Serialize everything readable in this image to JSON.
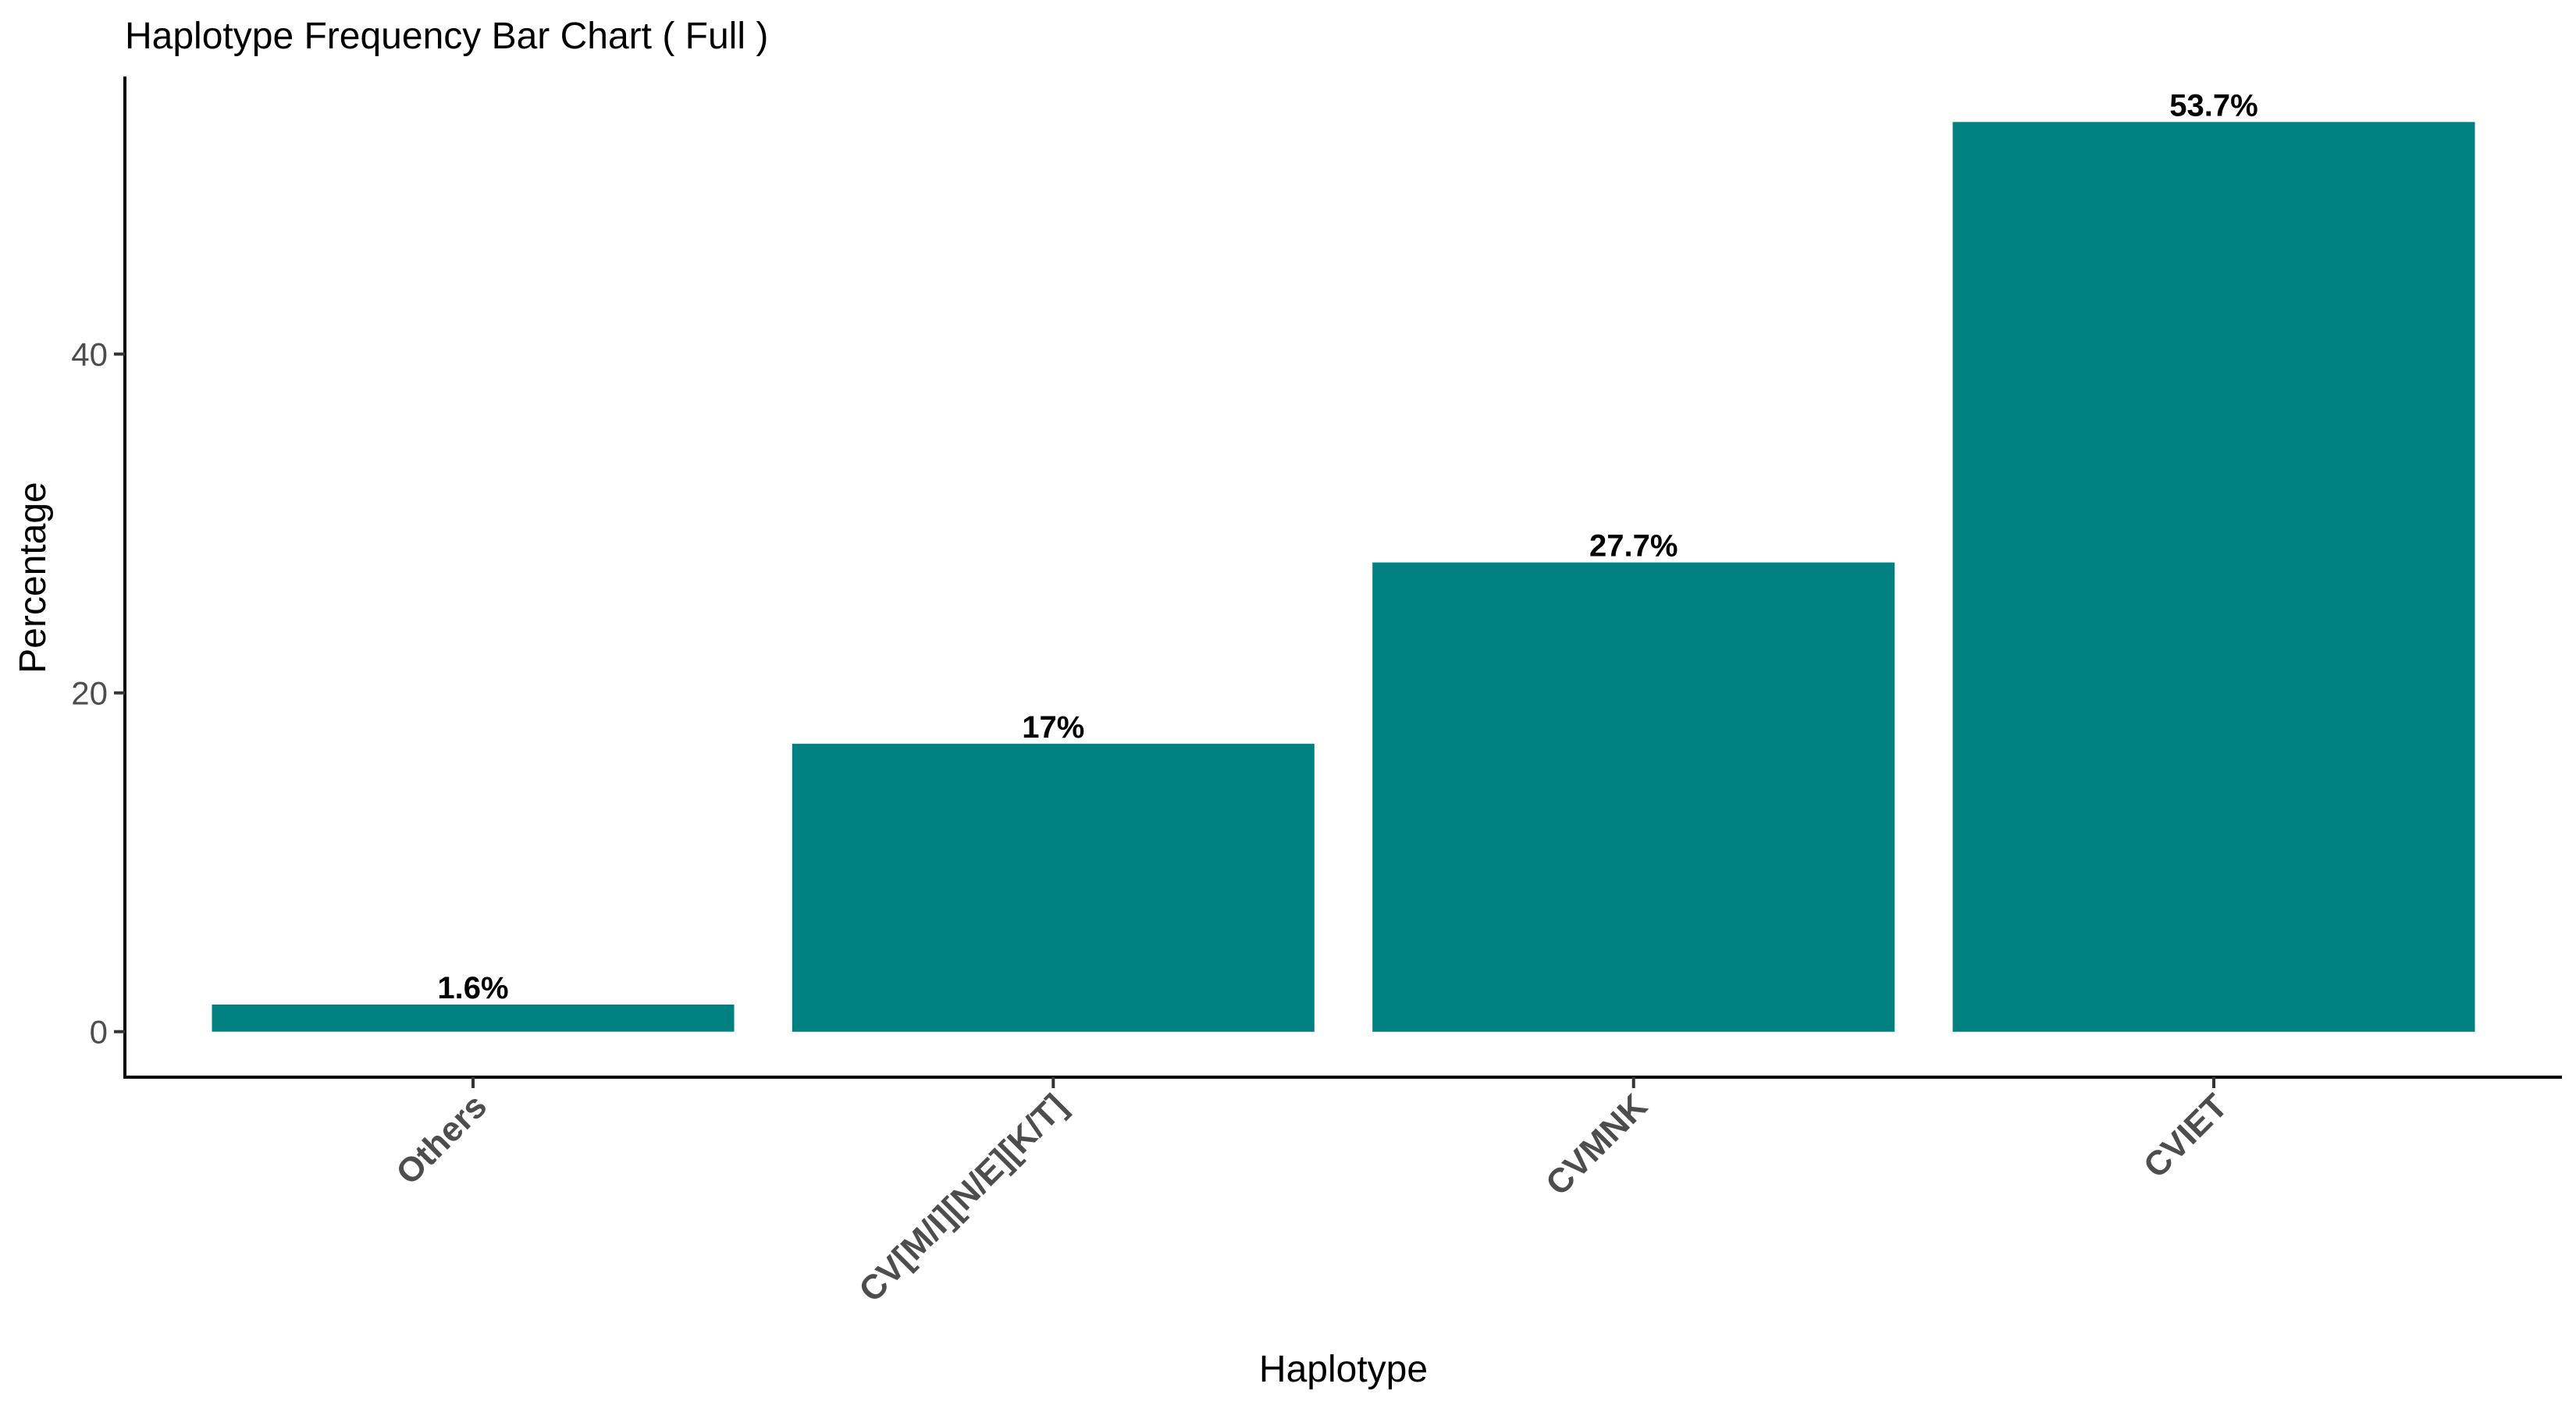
{
  "chart_data": {
    "type": "bar",
    "title": "Haplotype Frequency Bar Chart ( Full )",
    "xlabel": "Haplotype",
    "ylabel": "Percentage",
    "categories": [
      "Others",
      "CV[M/I][N/E][K/T]",
      "CVMNK",
      "CVIET"
    ],
    "values": [
      1.6,
      17,
      27.7,
      53.7
    ],
    "data_labels": [
      "1.6%",
      "17%",
      "27.7%",
      "53.7%"
    ],
    "yticks": [
      0,
      20,
      40
    ],
    "ytick_labels": [
      "0",
      "20",
      "40"
    ],
    "ylim": [
      -2.685,
      56.385
    ],
    "grid": false,
    "legend": "none",
    "bar_color": "#008080"
  }
}
